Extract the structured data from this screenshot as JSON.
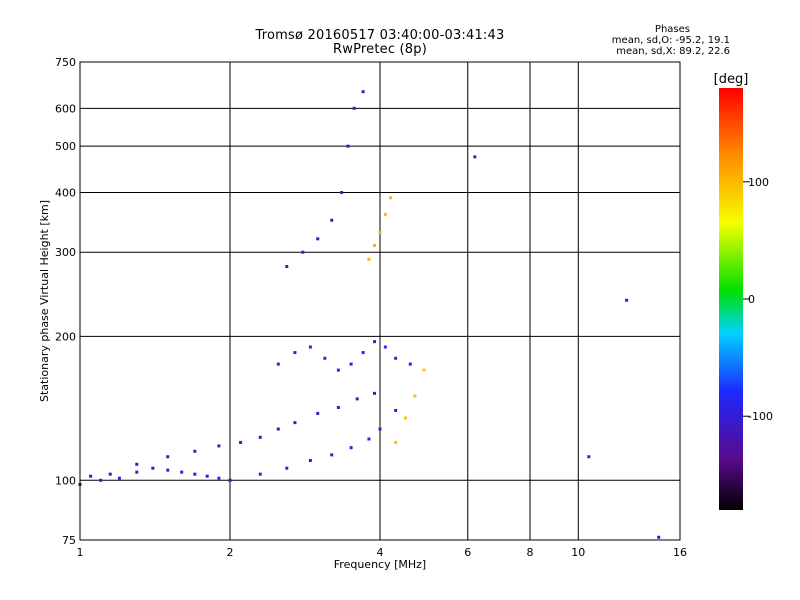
{
  "header": {
    "title_line1": "Tromsø 20160517 03:40:00-03:41:43",
    "title_line2": "RwPretec (8p)"
  },
  "phase_stats": {
    "heading": "Phases",
    "line_o": "mean, sd,O: -95.2, 19.1",
    "line_x": "mean, sd,X:  89.2, 22.6"
  },
  "chart_data": {
    "type": "scatter",
    "title": "Tromsø 20160517 03:40:00-03:41:43",
    "subtitle": "RwPretec (8p)",
    "xlabel": "Frequency [MHz]",
    "ylabel": "Stationary phase Virtual Height [km]",
    "x_scale": "log",
    "y_scale": "log",
    "xlim": [
      1,
      16
    ],
    "ylim": [
      75,
      750
    ],
    "x_ticks": [
      1,
      2,
      4,
      6,
      8,
      10,
      16
    ],
    "x_tick_labels": [
      "1",
      "2",
      "4",
      "6",
      "8",
      "10",
      "16"
    ],
    "y_ticks": [
      75,
      100,
      200,
      300,
      400,
      500,
      600,
      750
    ],
    "y_tick_labels": [
      "75",
      "100",
      "200",
      "300",
      "400",
      "500",
      "600",
      "750"
    ],
    "grid": true,
    "colorbar": {
      "label": "[deg]",
      "range": [
        -180,
        180
      ],
      "ticks": [
        100,
        0,
        -100
      ],
      "tick_labels": [
        "100",
        "0",
        "-100"
      ],
      "colors": [
        "#000000",
        "#5a0a8c",
        "#1e28ff",
        "#00d2ff",
        "#00e000",
        "#f5ff00",
        "#ff8c00",
        "#ff0000"
      ]
    },
    "series": [
      {
        "freq": [
          1.0,
          1.05,
          1.1,
          1.15,
          1.2,
          1.3,
          1.4,
          1.5,
          1.6,
          1.7,
          1.8,
          1.9,
          2.0
        ],
        "height": [
          98,
          102,
          100,
          103,
          101,
          104,
          106,
          105,
          104,
          103,
          102,
          101,
          100
        ],
        "phase": -100
      },
      {
        "freq": [
          1.3,
          1.5,
          1.7,
          1.9,
          2.1,
          2.3,
          2.5,
          2.7,
          3.0,
          3.3,
          3.6,
          3.9
        ],
        "height": [
          108,
          112,
          115,
          118,
          120,
          123,
          128,
          132,
          138,
          142,
          148,
          152
        ],
        "phase": -110
      },
      {
        "freq": [
          2.0,
          2.3,
          2.6,
          2.9,
          3.2,
          3.5,
          3.8,
          4.0,
          4.3
        ],
        "height": [
          100,
          103,
          106,
          110,
          113,
          117,
          122,
          128,
          140
        ],
        "phase": -95
      },
      {
        "freq": [
          2.5,
          2.7,
          2.9,
          3.1,
          3.3,
          3.5,
          3.7,
          3.9,
          4.1,
          4.3,
          4.6
        ],
        "height": [
          175,
          185,
          190,
          180,
          170,
          175,
          185,
          195,
          190,
          180,
          175
        ],
        "phase": -85
      },
      {
        "freq": [
          2.6,
          2.8,
          3.0,
          3.2,
          3.35,
          3.45,
          3.55,
          3.7
        ],
        "height": [
          280,
          300,
          320,
          350,
          400,
          500,
          600,
          650
        ],
        "phase": -105
      },
      {
        "freq": [
          3.8,
          3.9,
          4.0,
          4.1,
          4.2
        ],
        "height": [
          290,
          310,
          330,
          360,
          390
        ],
        "phase": 100
      },
      {
        "freq": [
          4.3,
          4.5,
          4.7,
          4.9
        ],
        "height": [
          120,
          135,
          150,
          170
        ],
        "phase": 95
      },
      {
        "freq": [
          6.2,
          12.5,
          10.5,
          14.5
        ],
        "height": [
          475,
          238,
          112,
          76
        ],
        "phase": -100
      }
    ]
  }
}
